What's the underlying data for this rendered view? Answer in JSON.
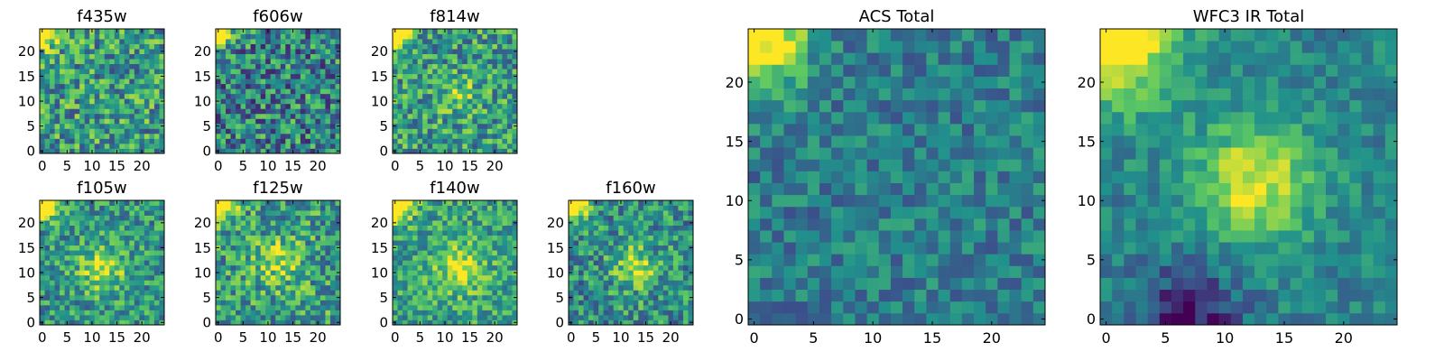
{
  "figure": {
    "description_colormap": "viridis",
    "colormap_stops": [
      "#440154",
      "#3b528b",
      "#21918c",
      "#5ec962",
      "#fde725"
    ]
  },
  "chart_data": [
    {
      "type": "heatmap",
      "title": "f435w",
      "grid_size": 25,
      "xlim": [
        0,
        24
      ],
      "ylim": [
        0,
        24
      ],
      "xticks": [
        0,
        5,
        10,
        15,
        20
      ],
      "yticks": [
        0,
        5,
        10,
        15,
        20
      ],
      "features": [
        {
          "kind": "bright_blob",
          "x": 0,
          "y": 24,
          "radius": 2.0,
          "amplitude": 0.9
        }
      ],
      "noise_level": 0.32,
      "background": 0.55,
      "seed": 11
    },
    {
      "type": "heatmap",
      "title": "f606w",
      "grid_size": 25,
      "xlim": [
        0,
        24
      ],
      "ylim": [
        0,
        24
      ],
      "xticks": [
        0,
        5,
        10,
        15,
        20
      ],
      "yticks": [
        0,
        5,
        10,
        15,
        20
      ],
      "features": [
        {
          "kind": "bright_blob",
          "x": 0,
          "y": 24,
          "radius": 1.8,
          "amplitude": 0.9
        }
      ],
      "noise_level": 0.34,
      "background": 0.45,
      "seed": 23
    },
    {
      "type": "heatmap",
      "title": "f814w",
      "grid_size": 25,
      "xlim": [
        0,
        24
      ],
      "ylim": [
        0,
        24
      ],
      "xticks": [
        0,
        5,
        10,
        15,
        20
      ],
      "yticks": [
        0,
        5,
        10,
        15,
        20
      ],
      "features": [
        {
          "kind": "bright_blob",
          "x": 0,
          "y": 24,
          "radius": 2.0,
          "amplitude": 0.9
        },
        {
          "kind": "bright_blob",
          "x": 13,
          "y": 11,
          "radius": 2.5,
          "amplitude": 0.25
        }
      ],
      "noise_level": 0.3,
      "background": 0.55,
      "seed": 37
    },
    {
      "type": "heatmap",
      "title": "f105w",
      "grid_size": 25,
      "xlim": [
        0,
        24
      ],
      "ylim": [
        0,
        24
      ],
      "xticks": [
        0,
        5,
        10,
        15,
        20
      ],
      "yticks": [
        0,
        5,
        10,
        15,
        20
      ],
      "features": [
        {
          "kind": "bright_blob",
          "x": 0,
          "y": 24,
          "radius": 2.2,
          "amplitude": 0.9
        },
        {
          "kind": "bright_blob",
          "x": 12,
          "y": 11,
          "radius": 3.5,
          "amplitude": 0.35
        }
      ],
      "noise_level": 0.26,
      "background": 0.52,
      "seed": 41
    },
    {
      "type": "heatmap",
      "title": "f125w",
      "grid_size": 25,
      "xlim": [
        0,
        24
      ],
      "ylim": [
        0,
        24
      ],
      "xticks": [
        0,
        5,
        10,
        15,
        20
      ],
      "yticks": [
        0,
        5,
        10,
        15,
        20
      ],
      "features": [
        {
          "kind": "bright_blob",
          "x": 0,
          "y": 24,
          "radius": 2.2,
          "amplitude": 0.9
        },
        {
          "kind": "bright_blob",
          "x": 12,
          "y": 12,
          "radius": 3.5,
          "amplitude": 0.3
        }
      ],
      "noise_level": 0.3,
      "background": 0.55,
      "seed": 53
    },
    {
      "type": "heatmap",
      "title": "f140w",
      "grid_size": 25,
      "xlim": [
        0,
        24
      ],
      "ylim": [
        0,
        24
      ],
      "xticks": [
        0,
        5,
        10,
        15,
        20
      ],
      "yticks": [
        0,
        5,
        10,
        15,
        20
      ],
      "features": [
        {
          "kind": "bright_blob",
          "x": 0,
          "y": 24,
          "radius": 2.2,
          "amplitude": 0.9
        },
        {
          "kind": "bright_blob",
          "x": 13,
          "y": 11,
          "radius": 3.5,
          "amplitude": 0.35
        }
      ],
      "noise_level": 0.24,
      "background": 0.58,
      "seed": 67
    },
    {
      "type": "heatmap",
      "title": "f160w",
      "grid_size": 25,
      "xlim": [
        0,
        24
      ],
      "ylim": [
        0,
        24
      ],
      "xticks": [
        0,
        5,
        10,
        15,
        20
      ],
      "yticks": [
        0,
        5,
        10,
        15,
        20
      ],
      "features": [
        {
          "kind": "bright_blob",
          "x": 0,
          "y": 24,
          "radius": 2.2,
          "amplitude": 0.9
        },
        {
          "kind": "bright_blob",
          "x": 13,
          "y": 11,
          "radius": 3.0,
          "amplitude": 0.4
        }
      ],
      "noise_level": 0.28,
      "background": 0.5,
      "seed": 79
    },
    {
      "type": "heatmap",
      "title": "ACS Total",
      "grid_size": 25,
      "xlim": [
        0,
        24
      ],
      "ylim": [
        0,
        24
      ],
      "xticks": [
        0,
        5,
        10,
        15,
        20
      ],
      "yticks": [
        0,
        5,
        10,
        15,
        20
      ],
      "features": [
        {
          "kind": "bright_blob",
          "x": 0,
          "y": 24,
          "radius": 3.0,
          "amplitude": 0.75
        }
      ],
      "noise_level": 0.18,
      "background": 0.42,
      "seed": 97
    },
    {
      "type": "heatmap",
      "title": "WFC3 IR Total",
      "grid_size": 25,
      "xlim": [
        0,
        24
      ],
      "ylim": [
        0,
        24
      ],
      "xticks": [
        0,
        5,
        10,
        15,
        20
      ],
      "yticks": [
        0,
        5,
        10,
        15,
        20
      ],
      "features": [
        {
          "kind": "bright_blob",
          "x": 0,
          "y": 24,
          "radius": 4.0,
          "amplitude": 0.75
        },
        {
          "kind": "bright_blob",
          "x": 12.5,
          "y": 11.5,
          "radius": 3.5,
          "amplitude": 0.5
        },
        {
          "kind": "dark_band",
          "x": 7,
          "y": 0,
          "radius": 3.0,
          "amplitude": -0.4
        }
      ],
      "noise_level": 0.14,
      "background": 0.45,
      "seed": 113
    }
  ]
}
